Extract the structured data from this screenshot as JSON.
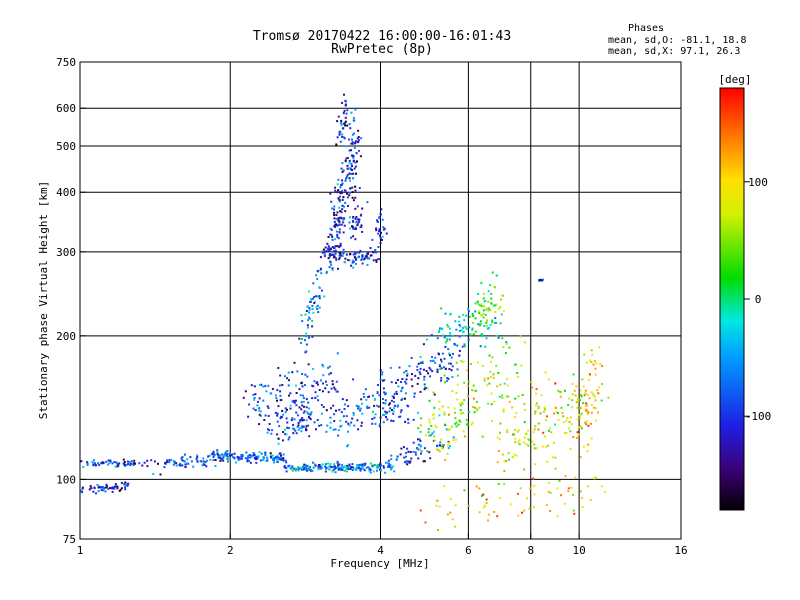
{
  "chart_data": {
    "type": "scatter",
    "title": "Tromsø 20170422 16:00:00-16:01:43",
    "subtitle": "RwPretec (8p)",
    "xlabel": "Frequency [MHz]",
    "ylabel": "Stationary phase Virtual Height [km]",
    "x_scale": "log",
    "y_scale": "log",
    "xlim": [
      1,
      16
    ],
    "ylim": [
      75,
      750
    ],
    "x_ticks": [
      1,
      2,
      4,
      6,
      8,
      10,
      16
    ],
    "x_tick_labels": [
      "1",
      "2",
      "4",
      "6",
      "8",
      "10",
      "16"
    ],
    "y_ticks": [
      75,
      100,
      200,
      300,
      400,
      500,
      600,
      750
    ],
    "y_tick_labels": [
      "75",
      "100",
      "200",
      "300",
      "400",
      "500",
      "600",
      "750"
    ],
    "x_gridlines": [
      2,
      4,
      6,
      8,
      10
    ],
    "y_gridlines": [
      100,
      200,
      300,
      400,
      500,
      600
    ],
    "stats": {
      "header": "Phases",
      "line1": "mean, sd,O: -81.1, 18.8",
      "line2": "mean, sd,X:  97.1, 26.3"
    },
    "colorbar": {
      "label": "[deg]",
      "range": [
        -180,
        180
      ],
      "ticks": [
        100,
        0,
        -100
      ],
      "tick_labels": [
        "100",
        "0",
        "-100"
      ]
    },
    "traces": [
      {
        "x": [
          1.0,
          1.35
        ],
        "y": [
          108,
          108
        ],
        "phase": -95,
        "n": 60,
        "jx": 0.01,
        "jy": 0.008
      },
      {
        "x": [
          1.0,
          1.25
        ],
        "y": [
          95,
          97
        ],
        "phase": -105,
        "n": 60,
        "jx": 0.01,
        "jy": 0.01
      },
      {
        "x": [
          1.4,
          1.95
        ],
        "y": [
          107,
          112
        ],
        "phase": -90,
        "n": 80,
        "jx": 0.02,
        "jy": 0.02
      },
      {
        "x": [
          1.9,
          2.6
        ],
        "y": [
          112,
          110
        ],
        "phase": -75,
        "n": 120,
        "jx": 0.02,
        "jy": 0.012
      },
      {
        "x": [
          2.6,
          4.1
        ],
        "y": [
          106,
          106
        ],
        "phase": -65,
        "n": 180,
        "jx": 0.02,
        "jy": 0.01
      },
      {
        "x": [
          4.1,
          5.5
        ],
        "y": [
          107,
          122
        ],
        "phase": -80,
        "n": 70,
        "jx": 0.02,
        "jy": 0.03
      },
      {
        "x": [
          2.2,
          3.3
        ],
        "y": [
          145,
          160
        ],
        "phase": -95,
        "n": 140,
        "jx": 0.03,
        "jy": 0.06
      },
      {
        "x": [
          2.4,
          3.0
        ],
        "y": [
          125,
          135
        ],
        "phase": -90,
        "n": 80,
        "jx": 0.03,
        "jy": 0.04
      },
      {
        "x": [
          3.2,
          4.5
        ],
        "y": [
          130,
          145
        ],
        "phase": -80,
        "n": 120,
        "jx": 0.03,
        "jy": 0.05
      },
      {
        "x": [
          4.0,
          5.8
        ],
        "y": [
          155,
          180
        ],
        "phase": -95,
        "n": 110,
        "jx": 0.03,
        "jy": 0.05
      },
      {
        "x": [
          2.8,
          3.05
        ],
        "y": [
          195,
          270
        ],
        "phase": -60,
        "n": 60,
        "jx": 0.015,
        "jy": 0.05
      },
      {
        "x": [
          3.05,
          3.3
        ],
        "y": [
          300,
          300
        ],
        "phase": -105,
        "n": 40,
        "jx": 0.01,
        "jy": 0.02
      },
      {
        "x": [
          3.2,
          3.6
        ],
        "y": [
          310,
          520
        ],
        "phase": -110,
        "n": 190,
        "jx": 0.012,
        "jy": 0.1
      },
      {
        "x": [
          3.3,
          3.4
        ],
        "y": [
          500,
          620
        ],
        "phase": -110,
        "n": 35,
        "jx": 0.008,
        "jy": 0.04
      },
      {
        "x": [
          3.4,
          3.9
        ],
        "y": [
          290,
          295
        ],
        "phase": -100,
        "n": 60,
        "jx": 0.015,
        "jy": 0.02
      },
      {
        "x": [
          3.5,
          3.7
        ],
        "y": [
          320,
          380
        ],
        "phase": -105,
        "n": 40,
        "jx": 0.01,
        "jy": 0.05
      },
      {
        "x": [
          3.85,
          4.1
        ],
        "y": [
          310,
          360
        ],
        "phase": -95,
        "n": 30,
        "jx": 0.01,
        "jy": 0.05
      },
      {
        "x": [
          5.2,
          6.8
        ],
        "y": [
          195,
          215
        ],
        "phase": -30,
        "n": 90,
        "jx": 0.03,
        "jy": 0.06
      },
      {
        "x": [
          6.3,
          7.0
        ],
        "y": [
          220,
          250
        ],
        "phase": 40,
        "n": 50,
        "jx": 0.02,
        "jy": 0.05
      },
      {
        "x": [
          5.0,
          7.5
        ],
        "y": [
          130,
          170
        ],
        "phase": 60,
        "n": 160,
        "jx": 0.04,
        "jy": 0.1
      },
      {
        "x": [
          7.0,
          11.0
        ],
        "y": [
          115,
          150
        ],
        "phase": 80,
        "n": 160,
        "jx": 0.04,
        "jy": 0.1
      },
      {
        "x": [
          5.0,
          11.0
        ],
        "y": [
          85,
          95
        ],
        "phase": 100,
        "n": 70,
        "jx": 0.05,
        "jy": 0.06
      },
      {
        "x": [
          10.0,
          11.0
        ],
        "y": [
          120,
          180
        ],
        "phase": 110,
        "n": 50,
        "jx": 0.02,
        "jy": 0.1
      },
      {
        "x": [
          8.3,
          8.45
        ],
        "y": [
          262,
          262
        ],
        "phase": -110,
        "n": 6,
        "jx": 0.003,
        "jy": 0.003
      }
    ]
  }
}
